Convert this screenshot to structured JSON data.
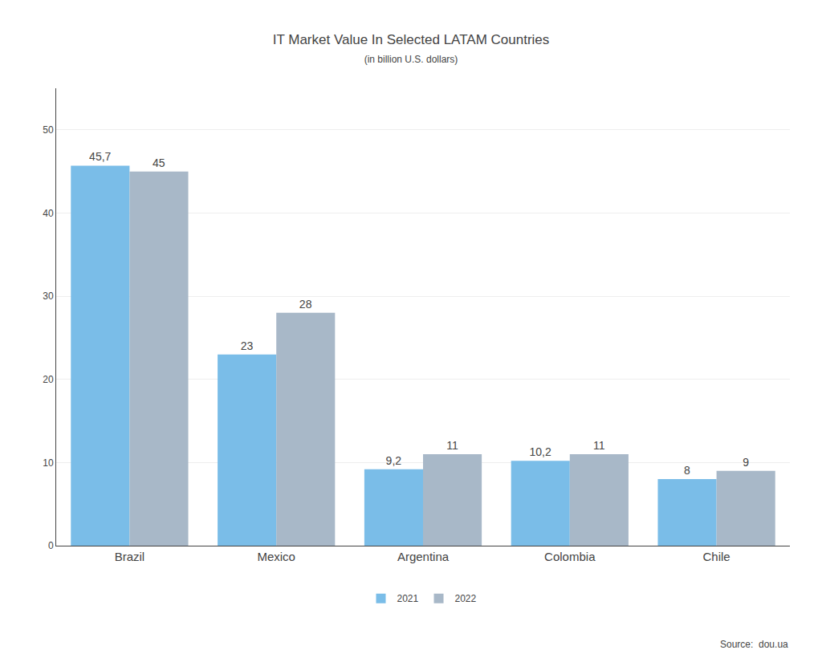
{
  "chart_data": {
    "type": "bar",
    "title": "IT Market Value In Selected LATAM Countries",
    "subtitle": "(in billion U.S. dollars)",
    "categories": [
      "Brazil",
      "Mexico",
      "Argentina",
      "Colombia",
      "Chile"
    ],
    "series": [
      {
        "name": "2021",
        "color": "#7abde8",
        "values": [
          45.7,
          23,
          9.2,
          10.2,
          8
        ],
        "value_labels": [
          "45,7",
          "23",
          "9,2",
          "10,2",
          "8"
        ]
      },
      {
        "name": "2022",
        "color": "#a8b8c8",
        "values": [
          45,
          28,
          11,
          11,
          9
        ],
        "value_labels": [
          "45",
          "28",
          "11",
          "11",
          "9"
        ]
      }
    ],
    "ylim": [
      0,
      55
    ],
    "yticks": [
      0,
      10,
      20,
      30,
      40,
      50
    ],
    "grid": true,
    "legend": "bottom",
    "data_labels": true,
    "annotations": [
      "Source:  dou.ua"
    ]
  }
}
